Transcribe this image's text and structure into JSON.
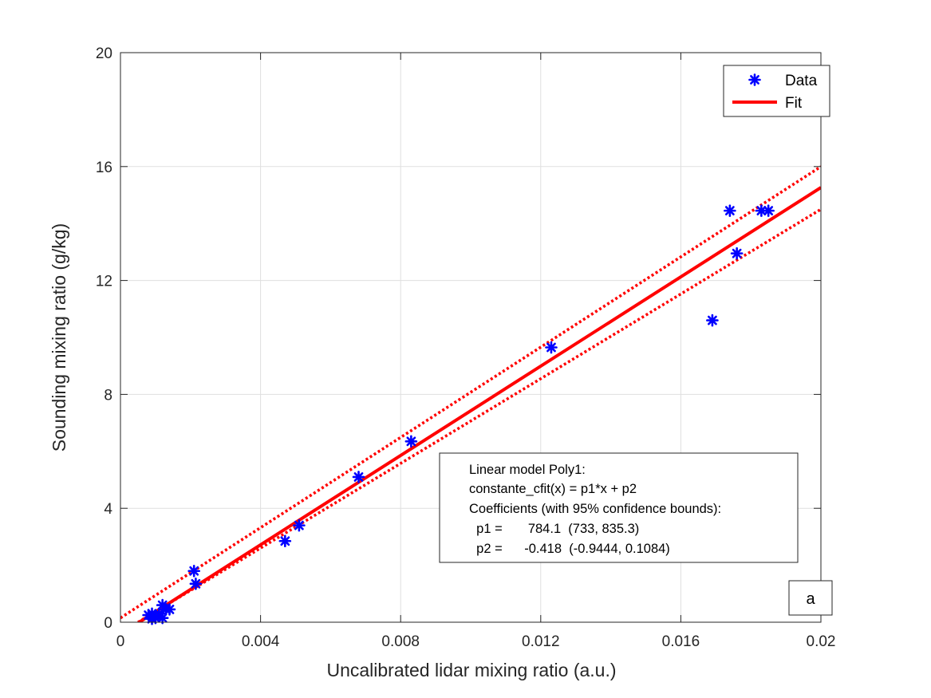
{
  "chart_data": {
    "type": "scatter",
    "title": "",
    "xlabel": "Uncalibrated lidar mixing ratio (a.u.)",
    "ylabel": "Sounding mixing ratio (g/kg)",
    "xlim": [
      0,
      0.02
    ],
    "ylim": [
      0,
      20
    ],
    "xticks": [
      0,
      0.004,
      0.008,
      0.012,
      0.016,
      0.02
    ],
    "xtick_labels": [
      "0",
      "0.004",
      "0.008",
      "0.012",
      "0.016",
      "0.02"
    ],
    "yticks": [
      0,
      4,
      8,
      12,
      16,
      20
    ],
    "ytick_labels": [
      "0",
      "4",
      "8",
      "12",
      "16",
      "20"
    ],
    "grid": true,
    "legend_position": "top-right",
    "series": [
      {
        "name": "Data",
        "kind": "scatter",
        "marker": "asterisk",
        "color": "#0000ff",
        "points": [
          [
            0.0008,
            0.25
          ],
          [
            0.0009,
            0.3
          ],
          [
            0.0009,
            0.12
          ],
          [
            0.001,
            0.15
          ],
          [
            0.0011,
            0.3
          ],
          [
            0.0012,
            0.6
          ],
          [
            0.0012,
            0.15
          ],
          [
            0.0013,
            0.45
          ],
          [
            0.0014,
            0.45
          ],
          [
            0.0021,
            1.8
          ],
          [
            0.00215,
            1.35
          ],
          [
            0.0047,
            2.85
          ],
          [
            0.0051,
            3.4
          ],
          [
            0.0068,
            5.1
          ],
          [
            0.0083,
            6.35
          ],
          [
            0.0123,
            9.65
          ],
          [
            0.0169,
            10.6
          ],
          [
            0.0174,
            14.45
          ],
          [
            0.0176,
            12.95
          ],
          [
            0.0183,
            14.45
          ],
          [
            0.0185,
            14.45
          ]
        ]
      },
      {
        "name": "Fit",
        "kind": "line",
        "color": "#ff0000",
        "slope": 784.1,
        "intercept": -0.418
      },
      {
        "kind": "bounds",
        "color": "#ff0000",
        "upper": [
          [
            0,
            0.15
          ],
          [
            0.02,
            16.0
          ]
        ],
        "lower": [
          [
            0.0005,
            0
          ],
          [
            0.02,
            14.5
          ]
        ]
      }
    ],
    "annotation": {
      "lines": [
        "Linear model Poly1:",
        "constante_cfit(x) = p1*x + p2",
        "Coefficients (with 95% confidence bounds):",
        "  p1 =       784.1  (733, 835.3)",
        "  p2 =      -0.418  (-0.9444, 0.1084)"
      ]
    },
    "panel_label": "a"
  }
}
